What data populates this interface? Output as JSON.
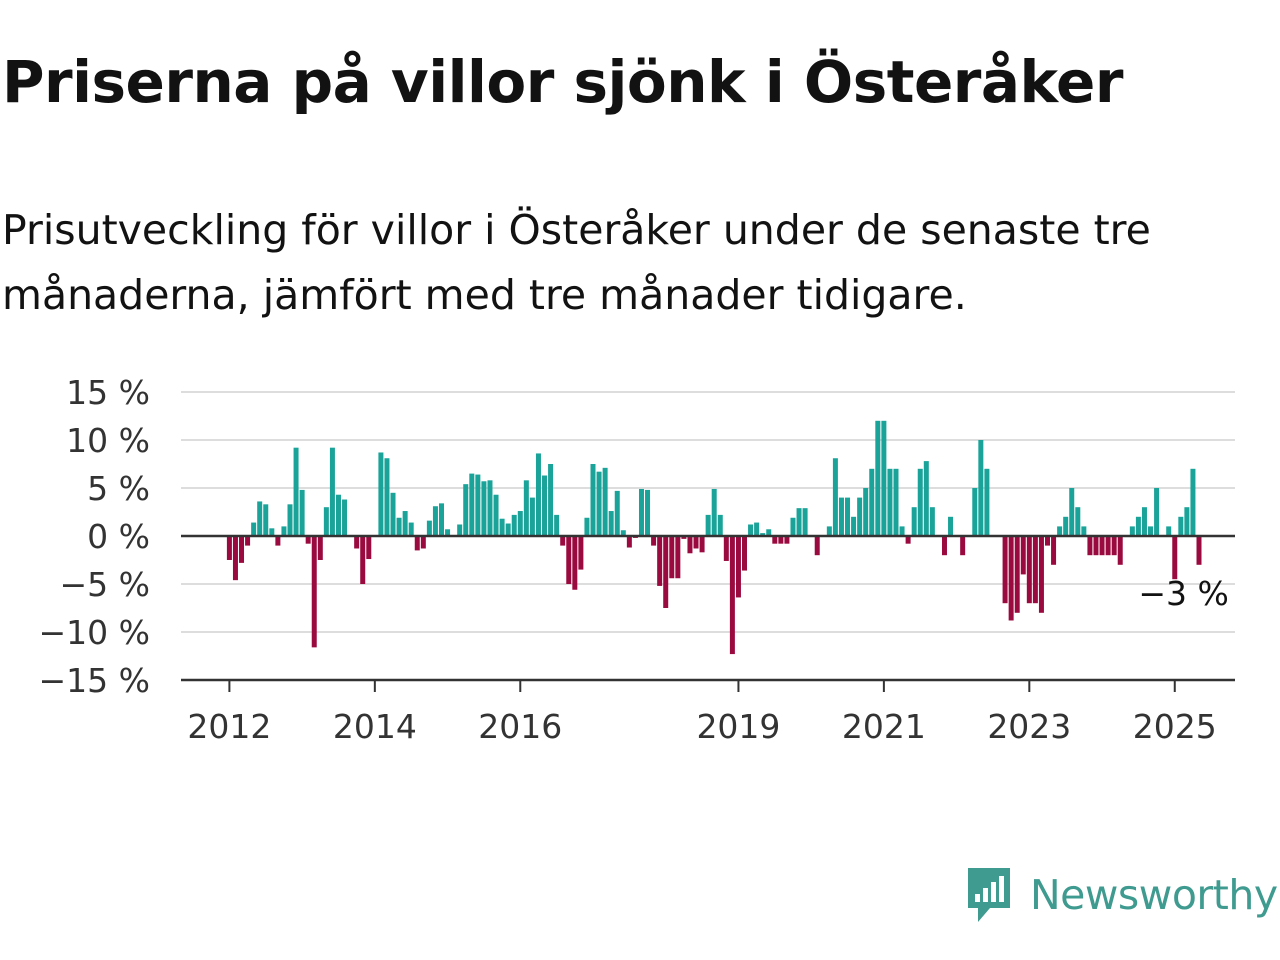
{
  "title": "Priserna på villor sjönk i Österåker",
  "subtitle": "Prisutveckling för villor i Österåker under de senaste tre månaderna, jämfört med tre månader tidigare.",
  "brand": {
    "name": "Newsworthy",
    "icon": "newsworthy-logo-icon",
    "color": "#3f9a8f"
  },
  "colors": {
    "positive": "#1aa399",
    "negative": "#9b0a3f",
    "grid": "#dddddd",
    "axis": "#333333"
  },
  "chart_data": {
    "type": "bar",
    "x_unit": "month",
    "start_month": "2012-01",
    "y_tick_labels": [
      "15 %",
      "10 %",
      "5 %",
      "0 %",
      "−5 %",
      "−10 %",
      "−15 %"
    ],
    "y_ticks": [
      15,
      10,
      5,
      0,
      -5,
      -10,
      -15
    ],
    "ylim": [
      -15,
      15
    ],
    "x_tick_labels": [
      "2012",
      "2014",
      "2016",
      "2019",
      "2021",
      "2023",
      "2025"
    ],
    "x_tick_months": [
      "2012-01",
      "2014-01",
      "2016-01",
      "2019-01",
      "2021-01",
      "2023-01",
      "2025-01"
    ],
    "grid": true,
    "annotation": {
      "text": "−3 %",
      "month": "2025-03",
      "value": -3
    },
    "values": [
      -2.5,
      -4.6,
      -2.8,
      -1.0,
      1.4,
      3.6,
      3.3,
      0.8,
      -1.0,
      1.0,
      3.3,
      9.2,
      4.8,
      -0.8,
      -11.6,
      -2.5,
      3.0,
      9.2,
      4.3,
      3.8,
      0,
      -1.3,
      -5.0,
      -2.4,
      0,
      8.7,
      8.1,
      4.5,
      1.9,
      2.6,
      1.4,
      -1.5,
      -1.3,
      1.6,
      3.1,
      3.4,
      0.7,
      0,
      1.2,
      5.4,
      6.5,
      6.4,
      5.7,
      5.8,
      4.3,
      1.8,
      1.3,
      2.2,
      2.6,
      5.8,
      4.0,
      8.6,
      6.3,
      7.5,
      2.2,
      -1.0,
      -5.0,
      -5.6,
      -3.5,
      1.9,
      7.5,
      6.7,
      7.1,
      2.6,
      4.7,
      0.6,
      -1.2,
      -0.2,
      4.9,
      4.8,
      -1.0,
      -5.2,
      -7.5,
      -4.4,
      -4.4,
      -0.3,
      -1.8,
      -1.3,
      -1.7,
      2.2,
      4.9,
      2.2,
      -2.6,
      -12.3,
      -6.4,
      -3.6,
      1.2,
      1.4,
      0.3,
      0.7,
      -0.8,
      -0.8,
      -0.8,
      1.9,
      2.9,
      2.9,
      0,
      -2.0,
      0,
      1.0,
      8.1,
      4.0,
      4.0,
      2.0,
      4.0,
      5.0,
      7.0,
      12.0,
      12.0,
      7.0,
      7.0,
      1.0,
      -0.8,
      3.0,
      7.0,
      7.8,
      3.0,
      0,
      -2.0,
      2.0,
      0,
      -2.0,
      0,
      5.0,
      10.0,
      7.0,
      0,
      0,
      -7.0,
      -8.8,
      -8.0,
      -4.0,
      -7.0,
      -7.0,
      -8.0,
      -1.0,
      -3.0,
      1.0,
      2.0,
      5.0,
      3.0,
      1.0,
      -2.0,
      -2.0,
      -2.0,
      -2.0,
      -2.0,
      -3.0,
      0,
      1.0,
      2.0,
      3.0,
      1.0,
      5.0,
      0,
      1.0,
      -4.5,
      2.0,
      3.0,
      7.0,
      -3.0
    ]
  }
}
